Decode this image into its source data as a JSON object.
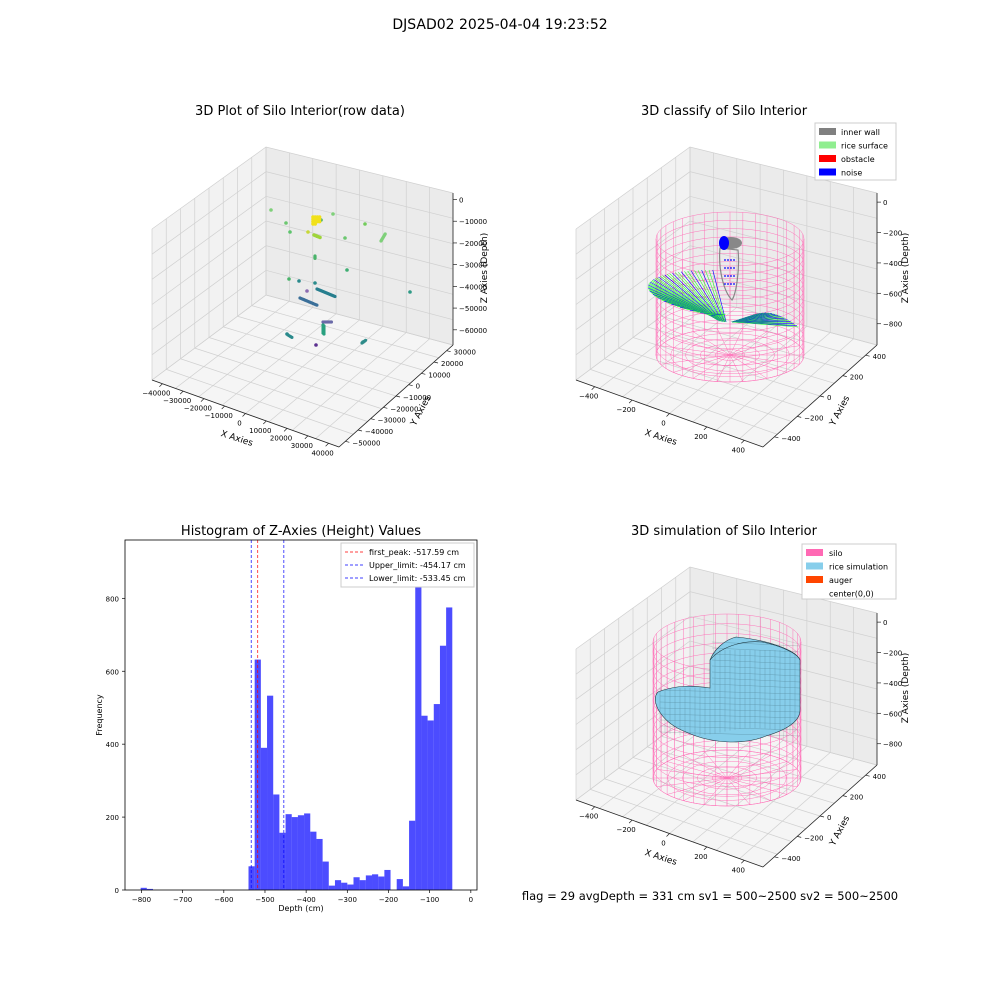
{
  "suptitle": "DJSAD02 2025-04-04 19:23:52",
  "panels": {
    "raw": {
      "title": "3D Plot of Silo Interior(row data)",
      "xlabel": "X Axies",
      "ylabel": "Y Axies",
      "zlabel": "Z Axies (Depth)",
      "xticks": [
        "−40000",
        "−30000",
        "−20000",
        "−10000",
        "0",
        "10000",
        "20000",
        "30000",
        "40000"
      ],
      "yticks": [
        "30000",
        "20000",
        "10000",
        "0",
        "−10000",
        "−20000",
        "−30000",
        "−40000",
        "−50000"
      ],
      "zticks": [
        "0",
        "−10000",
        "−20000",
        "−30000",
        "−40000",
        "−50000",
        "−60000"
      ]
    },
    "classify": {
      "title": "3D classify of Silo Interior",
      "xlabel": "X Axies",
      "ylabel": "Y Axies",
      "zlabel": "Z Axies (Depth)",
      "xticks": [
        "−400",
        "−200",
        "0",
        "200",
        "400"
      ],
      "yticks": [
        "400",
        "200",
        "0",
        "−200",
        "−400"
      ],
      "zticks": [
        "0",
        "−200",
        "−400",
        "−600",
        "−800"
      ],
      "legend": [
        {
          "label": "inner wall",
          "color": "#808080"
        },
        {
          "label": "rice surface",
          "color": "#90ee90"
        },
        {
          "label": "obstacle",
          "color": "#ff0000"
        },
        {
          "label": "noise",
          "color": "#0000ff"
        }
      ]
    },
    "simulation": {
      "title": "3D simulation of Silo Interior",
      "xlabel": "X Axies",
      "ylabel": "Y Axies",
      "zlabel": "Z Axies (Depth)",
      "xticks": [
        "−400",
        "−200",
        "0",
        "200",
        "400"
      ],
      "yticks": [
        "400",
        "200",
        "0",
        "−200",
        "−400"
      ],
      "zticks": [
        "0",
        "−200",
        "−400",
        "−600",
        "−800"
      ],
      "legend": [
        {
          "label": "silo",
          "color": "#ff69b4"
        },
        {
          "label": "rice simulation",
          "color": "#87ceeb"
        },
        {
          "label": "auger",
          "color": "#ff4500"
        },
        {
          "label": "center(0,0)",
          "color": ""
        }
      ]
    }
  },
  "status_line": "flag = 29  avgDepth = 331 cm  sv1 = 500~2500  sv2 = 500~2500",
  "chart_data": [
    {
      "type": "bar",
      "title": "Histogram of Z-Axies (Height) Values",
      "xlabel": "Depth (cm)",
      "ylabel": "Frequency",
      "xlim": [
        -840,
        15
      ],
      "ylim": [
        0,
        960
      ],
      "xticks": [
        -800,
        -700,
        -600,
        -500,
        -400,
        -300,
        -200,
        -100,
        0
      ],
      "yticks": [
        0,
        200,
        400,
        600,
        800
      ],
      "bin_width": 15,
      "bins": [
        {
          "x0": -802,
          "v": 6
        },
        {
          "x0": -787,
          "v": 3
        },
        {
          "x0": -540,
          "v": 65
        },
        {
          "x0": -525,
          "v": 632
        },
        {
          "x0": -510,
          "v": 390
        },
        {
          "x0": -495,
          "v": 533
        },
        {
          "x0": -480,
          "v": 262
        },
        {
          "x0": -465,
          "v": 157
        },
        {
          "x0": -450,
          "v": 208
        },
        {
          "x0": -435,
          "v": 200
        },
        {
          "x0": -420,
          "v": 205
        },
        {
          "x0": -405,
          "v": 210
        },
        {
          "x0": -390,
          "v": 160
        },
        {
          "x0": -375,
          "v": 140
        },
        {
          "x0": -360,
          "v": 78
        },
        {
          "x0": -345,
          "v": 12
        },
        {
          "x0": -330,
          "v": 27
        },
        {
          "x0": -315,
          "v": 20
        },
        {
          "x0": -300,
          "v": 15
        },
        {
          "x0": -285,
          "v": 35
        },
        {
          "x0": -270,
          "v": 27
        },
        {
          "x0": -255,
          "v": 40
        },
        {
          "x0": -240,
          "v": 43
        },
        {
          "x0": -225,
          "v": 37
        },
        {
          "x0": -210,
          "v": 55
        },
        {
          "x0": -180,
          "v": 30
        },
        {
          "x0": -165,
          "v": 10
        },
        {
          "x0": -150,
          "v": 190
        },
        {
          "x0": -135,
          "v": 912
        },
        {
          "x0": -120,
          "v": 478
        },
        {
          "x0": -105,
          "v": 465
        },
        {
          "x0": -90,
          "v": 510
        },
        {
          "x0": -75,
          "v": 670
        },
        {
          "x0": -60,
          "v": 775
        }
      ],
      "bar_color": "#0000ff",
      "vlines": [
        {
          "label": "first_peak: -517.59 cm",
          "x": -517.59,
          "color": "#ff0000"
        },
        {
          "label": "Upper_limit: -454.17 cm",
          "x": -454.17,
          "color": "#0000ff"
        },
        {
          "label": "Lower_limit: -533.45 cm",
          "x": -533.45,
          "color": "#0000ff"
        }
      ],
      "legend_position": "upper right"
    }
  ]
}
